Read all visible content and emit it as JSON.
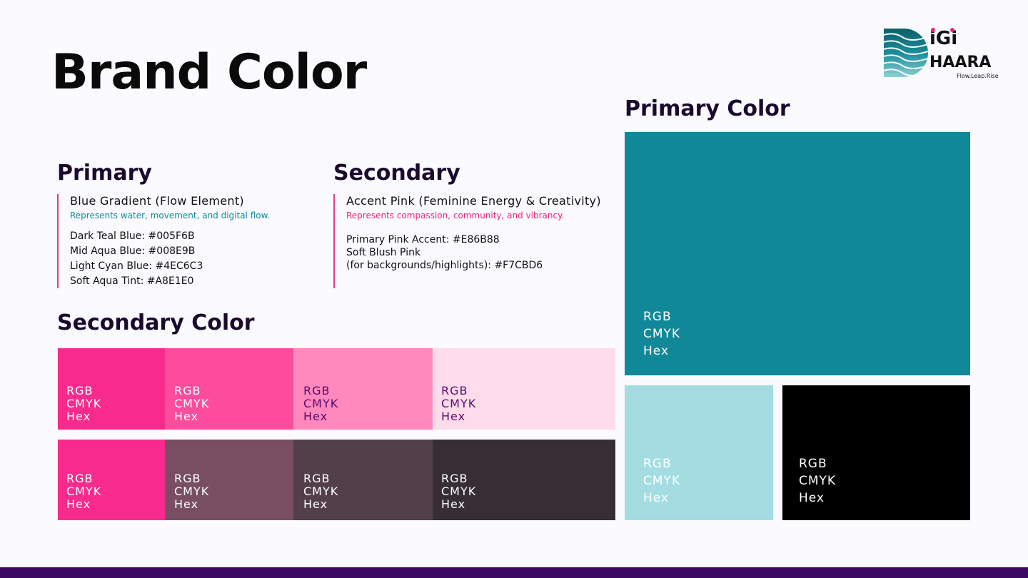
{
  "title": "Brand Color",
  "primary_color_heading": "Primary Color",
  "primary": {
    "heading": "Primary",
    "subtitle": "Blue Gradient (Flow Element)",
    "description": "Represents water, movement, and digital flow.",
    "items": [
      "Dark Teal Blue: #005F6B",
      "Mid Aqua Blue: #008E9B",
      "Light Cyan Blue: #4EC6C3",
      "Soft Aqua Tint: #A8E1E0"
    ]
  },
  "secondary": {
    "heading": "Secondary",
    "subtitle": "Accent Pink (Feminine Energy & Creativity)",
    "description": "Represents compassion, community, and vibrancy.",
    "items": [
      "Primary Pink Accent: #E86B88",
      "Soft Blush Pink",
      "(for backgrounds/highlights): #F7CBD6"
    ]
  },
  "secondary_color_heading": "Secondary Color",
  "swatch_labels": {
    "rgb": "RGB",
    "cmyk": "CMYK",
    "hex": "Hex"
  },
  "logo": {
    "line1": "iGi",
    "line2": "HAARA",
    "tagline": "Flow.Leap.Rise"
  },
  "colors": {
    "primary_large": "#108898",
    "primary_light": "#a3dde2",
    "primary_black": "#000000",
    "sec_row1": [
      "#f72b8d",
      "#fd4c9d",
      "#ff88bd",
      "#ffdcea"
    ],
    "sec_row2": [
      "#f72b8d",
      "#784e62",
      "#523f4a",
      "#362e33"
    ],
    "footer": "#3c0a63",
    "accent_line": "#e03c8a"
  }
}
